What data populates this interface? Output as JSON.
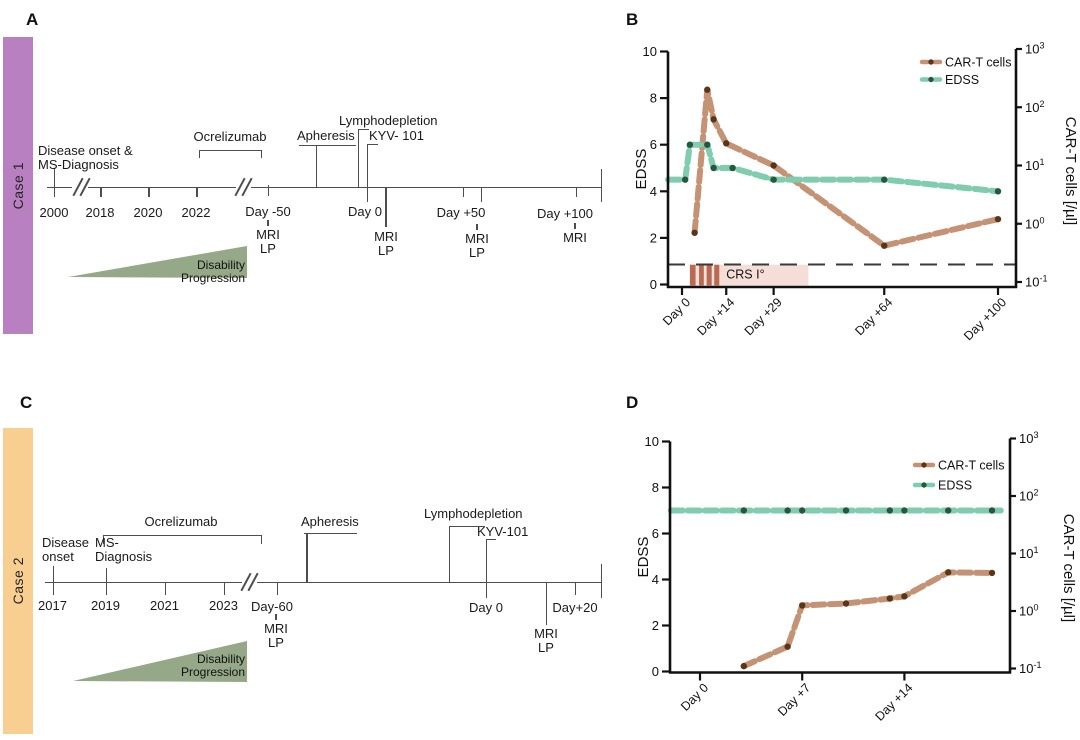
{
  "panel_labels": {
    "a": "A",
    "b": "B",
    "c": "C",
    "d": "D"
  },
  "labels": {
    "mri": "MRI",
    "lp": "LP",
    "disability": [
      "Disability",
      "Progression"
    ]
  },
  "case1": {
    "side_label": "Case 1",
    "bar_color": "#b980c1",
    "onset_line1": "Disease onset &",
    "onset_line2": "MS-Diagnosis",
    "ocrelizumab": "Ocrelizumab",
    "apheresis": "Apheresis",
    "lymphodepletion": "Lymphodepletion",
    "kyv": "KYV- 101",
    "ticks": {
      "t2000": "2000",
      "t2018": "2018",
      "t2020": "2020",
      "t2022": "2022",
      "day_m50": "Day -50",
      "day0": "Day 0",
      "day_p50": "Day +50",
      "day_p100": "Day +100"
    }
  },
  "case2": {
    "side_label": "Case 2",
    "bar_color": "#f8cf90",
    "onset_line1": "Disease",
    "onset_line2": "onset",
    "ms_line1": "MS-",
    "ms_line2": "Diagnosis",
    "ocrelizumab": "Ocrelizumab",
    "apheresis": "Apheresis",
    "lymphodepletion": "Lymphodepletion",
    "kyv": "KYV-101",
    "ticks": {
      "t2017": "2017",
      "t2019": "2019",
      "t2021": "2021",
      "t2023": "2023",
      "day_m60": "Day-60",
      "day0": "Day 0",
      "day_p20": "Day+20"
    }
  },
  "chart_data": [
    {
      "id": "B",
      "type": "line",
      "left_axis": {
        "label": "EDSS",
        "min": 0,
        "max": 10,
        "ticks": [
          0,
          2,
          4,
          6,
          8,
          10
        ]
      },
      "right_axis": {
        "label": "CAR-T cells [/µl]",
        "scale": "log10",
        "tick_exponents": [
          -1,
          0,
          1,
          2,
          3
        ]
      },
      "x_ticks": [
        {
          "day": 0,
          "label": "Day 0"
        },
        {
          "day": 14,
          "label": "Day +14"
        },
        {
          "day": 29,
          "label": "Day +29"
        },
        {
          "day": 64,
          "label": "Day +64"
        },
        {
          "day": 100,
          "label": "Day +100"
        }
      ],
      "series": [
        {
          "name": "CAR-T cells",
          "axis": "right",
          "color": "#c49376",
          "dot_color": "#5c3418",
          "days": [
            4,
            8,
            10,
            14,
            29,
            64,
            100
          ],
          "values": [
            0.7,
            200,
            62,
            24,
            10,
            0.42,
            1.2
          ]
        },
        {
          "name": "EDSS",
          "axis": "left",
          "color": "#7fccae",
          "dot_color": "#285740",
          "days": [
            1,
            2.5,
            8,
            10,
            16,
            29,
            64,
            100
          ],
          "values": [
            4.5,
            6,
            6,
            5,
            5,
            4.5,
            4.5,
            4
          ],
          "line_start_day": -4.5
        }
      ],
      "detection_limit": {
        "edss_y": 0.86,
        "color": "#3a3a3a",
        "style": "dashed"
      },
      "crs": {
        "label": "CRS I°",
        "label_day": 14,
        "day_start": 2.5,
        "day_end": 40,
        "top_edss": 0.85,
        "event_days": [
          [
            2.5,
            4.3
          ],
          [
            5.4,
            6.9
          ],
          [
            7.8,
            9.4
          ],
          [
            10.2,
            11.8
          ]
        ],
        "box_color": "#f6ded8",
        "bar_color": "#b96a52"
      }
    },
    {
      "id": "D",
      "type": "line",
      "left_axis": {
        "label": "EDSS",
        "min": 0,
        "max": 10,
        "ticks": [
          0,
          2,
          4,
          6,
          8,
          10
        ]
      },
      "right_axis": {
        "label": "CAR-T cells [/µl]",
        "scale": "log10",
        "tick_exponents": [
          -1,
          0,
          1,
          2,
          3
        ]
      },
      "x_ticks": [
        {
          "day": 0,
          "label": "Day 0"
        },
        {
          "day": 7,
          "label": "Day +7"
        },
        {
          "day": 14,
          "label": "Day +14"
        }
      ],
      "series": [
        {
          "name": "CAR-T cells",
          "axis": "right",
          "color": "#c49376",
          "dot_color": "#5c3418",
          "days": [
            3,
            6,
            7,
            10,
            13,
            14,
            17,
            20
          ],
          "values": [
            0.11,
            0.24,
            1.25,
            1.35,
            1.65,
            1.8,
            4.7,
            4.6
          ]
        },
        {
          "name": "EDSS",
          "axis": "left",
          "color": "#7fccae",
          "dot_color": "#285740",
          "days": [
            3,
            6,
            7,
            10,
            13,
            14,
            17,
            20
          ],
          "values": [
            7,
            7,
            7,
            7,
            7,
            7,
            7,
            7
          ],
          "line_start_day": -2,
          "line_end_day": 20.6
        }
      ]
    }
  ]
}
